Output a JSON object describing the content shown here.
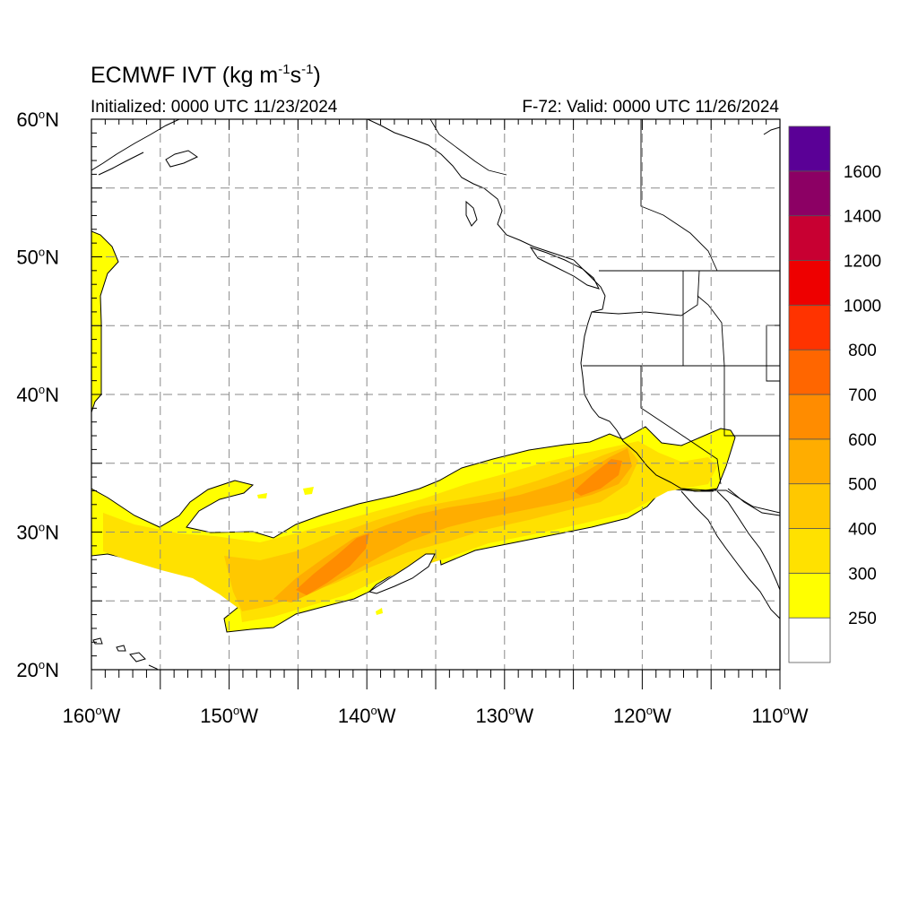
{
  "title": {
    "text": "ECMWF IVT (kg m",
    "sup1": "-1",
    "mid": "s",
    "sup2": "-1",
    "end": ")"
  },
  "initialized": "Initialized: 0000 UTC 11/23/2024",
  "valid": "F-72: Valid: 0000 UTC 11/26/2024",
  "map": {
    "lon_range": [
      -160,
      -110
    ],
    "lat_range": [
      20,
      60
    ],
    "grid": true,
    "grid_lon_step": 5,
    "grid_lat_step": 5,
    "lat_ticks": [
      {
        "value": 60,
        "label": "60",
        "hemi": "N"
      },
      {
        "value": 50,
        "label": "50",
        "hemi": "N"
      },
      {
        "value": 40,
        "label": "40",
        "hemi": "N"
      },
      {
        "value": 30,
        "label": "30",
        "hemi": "N"
      },
      {
        "value": 20,
        "label": "20",
        "hemi": "N"
      }
    ],
    "lon_ticks": [
      {
        "value": -160,
        "label": "160",
        "hemi": "W"
      },
      {
        "value": -150,
        "label": "150",
        "hemi": "W"
      },
      {
        "value": -140,
        "label": "140",
        "hemi": "W"
      },
      {
        "value": -130,
        "label": "130",
        "hemi": "W"
      },
      {
        "value": -120,
        "label": "120",
        "hemi": "W"
      },
      {
        "value": -110,
        "label": "110",
        "hemi": "W"
      }
    ]
  },
  "colorbar": {
    "levels": [
      "250",
      "300",
      "400",
      "500",
      "600",
      "700",
      "800",
      "1000",
      "1200",
      "1400",
      "1600"
    ],
    "colors": [
      "#ffffff",
      "#ffff00",
      "#ffe100",
      "#ffc800",
      "#ffad00",
      "#ff8c00",
      "#ff6600",
      "#ff3300",
      "#ee0000",
      "#c80032",
      "#8c0064",
      "#5a0096"
    ]
  }
}
